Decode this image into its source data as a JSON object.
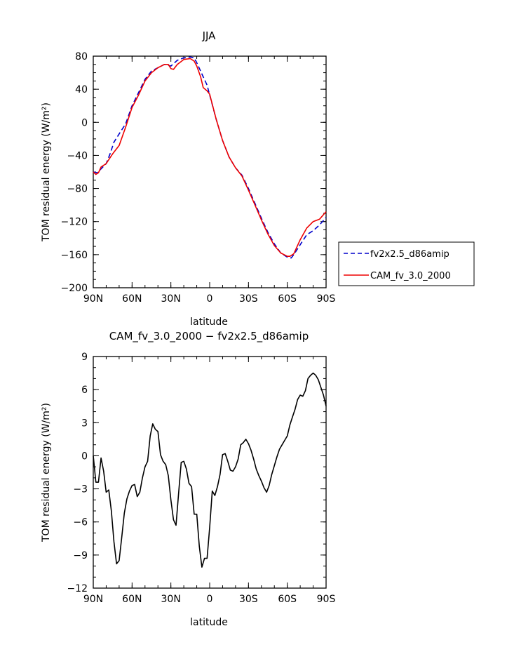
{
  "chart_data": [
    {
      "type": "line",
      "title": "JJA",
      "xlabel": "latitude",
      "ylabel": "TOM residual energy (W/m²)",
      "xlim": [
        90,
        -90
      ],
      "ylim": [
        -200,
        80
      ],
      "xticks": [
        90,
        60,
        30,
        0,
        -30,
        -60,
        -90
      ],
      "xtick_labels": [
        "90N",
        "60N",
        "30N",
        "0",
        "30S",
        "60S",
        "90S"
      ],
      "yticks": [
        -200,
        -160,
        -120,
        -80,
        -40,
        0,
        40,
        80
      ],
      "ytick_labels": [
        "−200",
        "−160",
        "−120",
        "−80",
        "−40",
        "0",
        "40",
        "80"
      ],
      "legend_position": "outside-right",
      "series": [
        {
          "name": "fv2x2.5_d86amip",
          "color": "#0000cc",
          "style": "dashed",
          "x": [
            90,
            87,
            85,
            80,
            77,
            74,
            70,
            65,
            60,
            55,
            50,
            45,
            40,
            35,
            32,
            30,
            25,
            20,
            15,
            12,
            10,
            5,
            2,
            0,
            -5,
            -10,
            -15,
            -20,
            -25,
            -30,
            -35,
            -40,
            -45,
            -50,
            -55,
            -60,
            -63,
            -65,
            -70,
            -75,
            -80,
            -85,
            -90
          ],
          "y": [
            -60,
            -61,
            -58,
            -50,
            -38,
            -24,
            -14,
            -2,
            20,
            36,
            52,
            62,
            66,
            70,
            69,
            68,
            75,
            78,
            79,
            78,
            72,
            55,
            45,
            33,
            4,
            -22,
            -42,
            -55,
            -64,
            -80,
            -98,
            -116,
            -133,
            -147,
            -158,
            -163,
            -164,
            -160,
            -148,
            -136,
            -131,
            -124,
            -115
          ]
        },
        {
          "name": "CAM_fv_3.0_2000",
          "color": "#ee0000",
          "style": "solid",
          "x": [
            90,
            88,
            86,
            84,
            80,
            75,
            70,
            65,
            60,
            55,
            50,
            45,
            40,
            35,
            32,
            30,
            28,
            25,
            20,
            15,
            12,
            10,
            7,
            5,
            2,
            0,
            -5,
            -10,
            -15,
            -20,
            -25,
            -30,
            -35,
            -40,
            -45,
            -50,
            -55,
            -60,
            -62,
            -65,
            -70,
            -75,
            -80,
            -85,
            -90
          ],
          "y": [
            -60,
            -63,
            -61,
            -54,
            -50,
            -38,
            -28,
            -6,
            18,
            33,
            50,
            60,
            66,
            70,
            70,
            65,
            64,
            70,
            76,
            77,
            74,
            68,
            55,
            42,
            38,
            34,
            4,
            -22,
            -42,
            -55,
            -65,
            -82,
            -100,
            -118,
            -135,
            -149,
            -158,
            -162,
            -162,
            -159,
            -142,
            -128,
            -120,
            -117,
            -108
          ]
        }
      ]
    },
    {
      "type": "line",
      "title": "CAM_fv_3.0_2000 − fv2x2.5_d86amip",
      "xlabel": "latitude",
      "ylabel": "TOM residual energy (W/m²)",
      "xlim": [
        90,
        -90
      ],
      "ylim": [
        -12,
        9
      ],
      "xticks": [
        90,
        60,
        30,
        0,
        -30,
        -60,
        -90
      ],
      "xtick_labels": [
        "90N",
        "60N",
        "30N",
        "0",
        "30S",
        "60S",
        "90S"
      ],
      "yticks": [
        -12,
        -9,
        -6,
        -3,
        0,
        3,
        6,
        9
      ],
      "ytick_labels": [
        "−12",
        "−9",
        "−6",
        "−3",
        "0",
        "3",
        "6",
        "9"
      ],
      "series": [
        {
          "color": "#000000",
          "style": "solid",
          "x": [
            90,
            88,
            86,
            84,
            82,
            80,
            78,
            76,
            74,
            72,
            70,
            68,
            66,
            64,
            62,
            60,
            58,
            56,
            54,
            52,
            50,
            48,
            46,
            44,
            42,
            40,
            38,
            36,
            34,
            32,
            30,
            28,
            26,
            24,
            22,
            20,
            18,
            16,
            14,
            12,
            10,
            8,
            6,
            4,
            2,
            0,
            -2,
            -4,
            -6,
            -8,
            -10,
            -12,
            -14,
            -16,
            -18,
            -20,
            -22,
            -24,
            -26,
            -28,
            -30,
            -32,
            -34,
            -36,
            -38,
            -40,
            -42,
            -44,
            -46,
            -48,
            -50,
            -52,
            -54,
            -56,
            -58,
            -60,
            -62,
            -64,
            -66,
            -68,
            -70,
            -72,
            -74,
            -76,
            -78,
            -80,
            -82,
            -84,
            -86,
            -88,
            -90
          ],
          "y": [
            0.0,
            -2.4,
            -2.4,
            -0.2,
            -1.4,
            -3.3,
            -3.1,
            -5.0,
            -7.8,
            -9.8,
            -9.5,
            -7.4,
            -5.2,
            -3.9,
            -3.2,
            -2.7,
            -2.6,
            -3.7,
            -3.3,
            -2.0,
            -1.0,
            -0.5,
            1.8,
            2.9,
            2.4,
            2.2,
            0.1,
            -0.5,
            -0.8,
            -1.8,
            -4.0,
            -5.8,
            -6.3,
            -3.4,
            -0.6,
            -0.5,
            -1.2,
            -2.5,
            -2.8,
            -5.3,
            -5.3,
            -8.2,
            -10.1,
            -9.3,
            -9.3,
            -6.5,
            -3.2,
            -3.6,
            -2.8,
            -1.7,
            0.1,
            0.2,
            -0.5,
            -1.3,
            -1.4,
            -1.0,
            -0.3,
            1.0,
            1.2,
            1.5,
            1.1,
            0.5,
            -0.3,
            -1.2,
            -1.8,
            -2.3,
            -2.9,
            -3.3,
            -2.7,
            -1.7,
            -0.9,
            -0.1,
            0.6,
            1.0,
            1.4,
            1.8,
            2.8,
            3.5,
            4.2,
            5.1,
            5.5,
            5.4,
            5.9,
            7.0,
            7.3,
            7.5,
            7.3,
            6.9,
            6.2,
            5.5,
            4.5
          ]
        }
      ]
    }
  ]
}
